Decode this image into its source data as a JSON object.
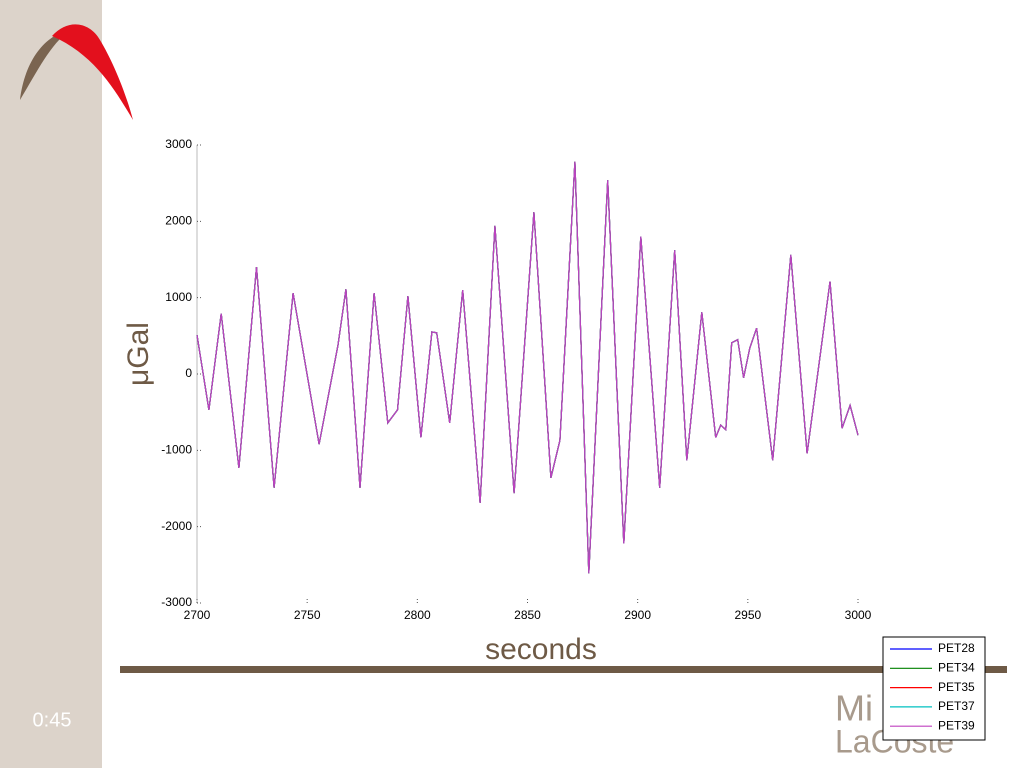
{
  "slide": {
    "timer": "0:45",
    "logo_text": [
      "Mi",
      "LaCoste"
    ]
  },
  "chart_data": {
    "type": "line",
    "ylabel": "μGal",
    "xlabel": "seconds",
    "x": [
      2700,
      2705.4,
      2711,
      2719,
      2727,
      2735,
      2743.6,
      2755.4,
      2764,
      2767.6,
      2774,
      2780.4,
      2786.6,
      2791,
      2795.7,
      2801.6,
      2806.6,
      2808.8,
      2814.7,
      2820.6,
      2828.5,
      2835.2,
      2843.9,
      2852.9,
      2860.6,
      2864.7,
      2871.5,
      2877.8,
      2886.4,
      2893.7,
      2901.4,
      2910,
      2916.8,
      2922.3,
      2929.1,
      2935.4,
      2937.7,
      2940,
      2942.7,
      2945.4,
      2948.1,
      2950.9,
      2954,
      2961.3,
      2969.5,
      2976.9,
      2987.3,
      2992.8,
      2996.4,
      3000
    ],
    "series": [
      {
        "name": "PET28",
        "color": "#0000ff",
        "values": [
          510,
          -470,
          790,
          -1230,
          1400,
          -1490,
          1060,
          -920,
          380,
          1110,
          -1490,
          1060,
          -640,
          -470,
          1020,
          -830,
          550,
          540,
          -640,
          1100,
          -1690,
          1940,
          -1560,
          2120,
          -1360,
          -870,
          2780,
          -2610,
          2540,
          -2220,
          1800,
          -1490,
          1620,
          -1130,
          810,
          -830,
          -670,
          -730,
          410,
          450,
          -50,
          340,
          600,
          -1130,
          1560,
          -1040,
          1210,
          -710,
          -410,
          -800
        ]
      },
      {
        "name": "PET34",
        "color": "#008000",
        "values": [
          510,
          -470,
          790,
          -1230,
          1400,
          -1490,
          1060,
          -920,
          380,
          1110,
          -1490,
          1060,
          -640,
          -470,
          1020,
          -830,
          550,
          540,
          -640,
          1100,
          -1690,
          1940,
          -1560,
          2120,
          -1360,
          -870,
          2780,
          -2610,
          2540,
          -2220,
          1800,
          -1490,
          1620,
          -1130,
          810,
          -830,
          -670,
          -730,
          410,
          450,
          -50,
          340,
          600,
          -1130,
          1560,
          -1040,
          1210,
          -710,
          -410,
          -800
        ]
      },
      {
        "name": "PET35",
        "color": "#ff0000",
        "values": [
          510,
          -470,
          790,
          -1230,
          1400,
          -1490,
          1060,
          -920,
          380,
          1110,
          -1490,
          1060,
          -640,
          -470,
          1020,
          -830,
          550,
          540,
          -640,
          1100,
          -1690,
          1940,
          -1560,
          2120,
          -1360,
          -870,
          2780,
          -2610,
          2540,
          -2220,
          1800,
          -1490,
          1620,
          -1130,
          810,
          -830,
          -670,
          -730,
          410,
          450,
          -50,
          340,
          600,
          -1130,
          1560,
          -1040,
          1210,
          -710,
          -410,
          -800
        ]
      },
      {
        "name": "PET37",
        "color": "#00c0c0",
        "values": [
          510,
          -470,
          790,
          -1230,
          1400,
          -1490,
          1060,
          -920,
          380,
          1110,
          -1490,
          1060,
          -640,
          -470,
          1020,
          -830,
          550,
          540,
          -640,
          1100,
          -1690,
          1940,
          -1560,
          2120,
          -1360,
          -870,
          2780,
          -2610,
          2540,
          -2220,
          1800,
          -1490,
          1620,
          -1130,
          810,
          -830,
          -670,
          -730,
          410,
          450,
          -50,
          340,
          600,
          -1130,
          1560,
          -1040,
          1210,
          -710,
          -410,
          -800
        ]
      },
      {
        "name": "PET39",
        "color": "#bf40bf",
        "values": [
          510,
          -470,
          790,
          -1230,
          1400,
          -1490,
          1060,
          -920,
          380,
          1110,
          -1490,
          1060,
          -640,
          -470,
          1020,
          -830,
          550,
          540,
          -640,
          1100,
          -1690,
          1940,
          -1560,
          2120,
          -1360,
          -870,
          2780,
          -2610,
          2540,
          -2220,
          1800,
          -1490,
          1620,
          -1130,
          810,
          -830,
          -670,
          -730,
          410,
          450,
          -50,
          340,
          600,
          -1130,
          1560,
          -1040,
          1210,
          -710,
          -410,
          -800
        ]
      }
    ],
    "xlim": [
      2700,
      3000
    ],
    "xticks": [
      2700,
      2750,
      2800,
      2850,
      2900,
      2950,
      3000
    ],
    "ylim": [
      -3000,
      3000
    ],
    "yticks": [
      -3000,
      -2000,
      -1000,
      0,
      1000,
      2000,
      3000
    ],
    "grid": false,
    "legend": "lower right"
  }
}
